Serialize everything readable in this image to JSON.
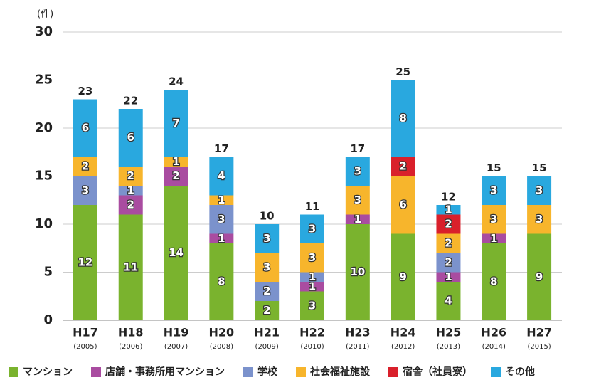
{
  "chart_data": {
    "type": "stacked_bar",
    "y_unit_label": "(件)",
    "categories": [
      "H17",
      "H18",
      "H19",
      "H20",
      "H21",
      "H22",
      "H23",
      "H24",
      "H25",
      "H26",
      "H27"
    ],
    "category_sublabels": [
      "(2005)",
      "(2006)",
      "(2007)",
      "(2008)",
      "(2009)",
      "(2010)",
      "(2011)",
      "(2012)",
      "(2013)",
      "(2014)",
      "(2015)"
    ],
    "series": [
      {
        "name": "マンション",
        "color": "#7ab32e",
        "values": [
          12,
          11,
          14,
          8,
          2,
          3,
          10,
          9,
          4,
          8,
          9
        ]
      },
      {
        "name": "店舗・事務所用マンション",
        "color": "#a94ca0",
        "values": [
          null,
          2,
          2,
          1,
          null,
          1,
          1,
          null,
          1,
          1,
          null
        ]
      },
      {
        "name": "学校",
        "color": "#7b92cc",
        "values": [
          3,
          1,
          null,
          3,
          2,
          1,
          null,
          null,
          2,
          null,
          null
        ]
      },
      {
        "name": "社会福祉施設",
        "color": "#f7b52c",
        "values": [
          2,
          2,
          1,
          1,
          3,
          3,
          3,
          6,
          2,
          3,
          3
        ]
      },
      {
        "name": "宿舎（社員寮）",
        "color": "#d9202b",
        "values": [
          null,
          null,
          null,
          null,
          null,
          null,
          null,
          2,
          2,
          null,
          null
        ]
      },
      {
        "name": "その他",
        "color": "#29a8df",
        "values": [
          6,
          6,
          7,
          4,
          3,
          3,
          3,
          8,
          1,
          3,
          3
        ]
      }
    ],
    "totals": [
      23,
      22,
      24,
      17,
      10,
      11,
      17,
      25,
      12,
      15,
      15
    ],
    "ylim": [
      0,
      30
    ],
    "yticks": [
      0,
      5,
      10,
      15,
      20,
      25,
      30
    ],
    "grid": true,
    "legend": "bottom"
  }
}
